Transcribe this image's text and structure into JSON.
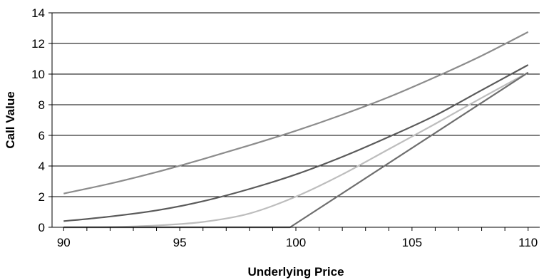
{
  "chart_data": {
    "type": "line",
    "title": "",
    "xlabel": "Underlying Price",
    "ylabel": "Call Value",
    "xlim": [
      89.5,
      110.5
    ],
    "ylim": [
      0,
      14
    ],
    "x_ticks": [
      90,
      95,
      100,
      105,
      110
    ],
    "y_ticks": [
      0,
      2,
      4,
      6,
      8,
      10,
      12,
      14
    ],
    "grid": "horizontal",
    "legend": "none",
    "colors": {
      "grid": "#000000",
      "axis": "#000000"
    },
    "series": [
      {
        "color": "#8c8c8c",
        "points": [
          [
            90,
            2.2
          ],
          [
            92,
            2.85
          ],
          [
            94,
            3.6
          ],
          [
            96,
            4.45
          ],
          [
            98,
            5.35
          ],
          [
            100,
            6.3
          ],
          [
            102,
            7.35
          ],
          [
            104,
            8.5
          ],
          [
            106,
            9.8
          ],
          [
            108,
            11.2
          ],
          [
            110,
            12.75
          ]
        ]
      },
      {
        "color": "#5a5a5a",
        "points": [
          [
            90,
            0.4
          ],
          [
            92,
            0.7
          ],
          [
            94,
            1.1
          ],
          [
            96,
            1.7
          ],
          [
            98,
            2.5
          ],
          [
            100,
            3.45
          ],
          [
            102,
            4.6
          ],
          [
            104,
            5.9
          ],
          [
            106,
            7.3
          ],
          [
            108,
            8.95
          ],
          [
            110,
            10.6
          ]
        ]
      },
      {
        "color": "#bdbdbd",
        "points": [
          [
            90,
            0.0
          ],
          [
            92,
            0.02
          ],
          [
            94,
            0.12
          ],
          [
            96,
            0.35
          ],
          [
            98,
            0.9
          ],
          [
            100,
            2.0
          ],
          [
            102,
            3.45
          ],
          [
            104,
            5.1
          ],
          [
            106,
            6.75
          ],
          [
            108,
            8.45
          ],
          [
            110,
            10.1
          ]
        ]
      },
      {
        "color": "#6e6e6e",
        "points": [
          [
            90,
            0.0
          ],
          [
            99.75,
            0.0
          ],
          [
            110,
            10.1
          ]
        ]
      }
    ]
  }
}
